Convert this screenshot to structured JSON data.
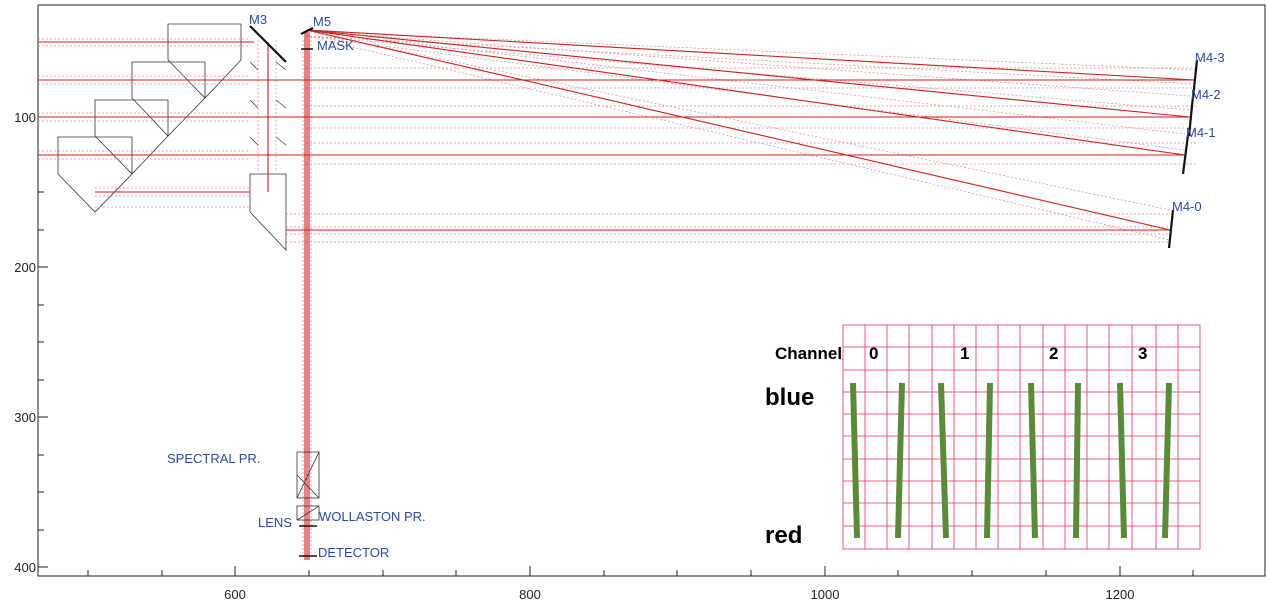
{
  "axes": {
    "x_ticks": [
      "600",
      "800",
      "1000",
      "1200"
    ],
    "y_ticks": [
      "100",
      "200",
      "300",
      "400"
    ]
  },
  "labels": {
    "m3": "M3",
    "m5": "M5",
    "mask": "MASK",
    "m4_3": "M4-3",
    "m4_2": "M4-2",
    "m4_1": "M4-1",
    "m4_0": "M4-0",
    "spectral_prism": "SPECTRAL PR.",
    "lens": "LENS",
    "wollaston_prism": "WOLLASTON PR.",
    "detector": "DETECTOR"
  },
  "inset": {
    "channel_title": "Channel",
    "channels": [
      "0",
      "1",
      "2",
      "3"
    ],
    "blue": "blue",
    "red": "red"
  },
  "colors": {
    "ray": "#cc1f1f",
    "ray_dotted": "#e08a8a",
    "label": "#2b4a9c",
    "grid": "#e0305a",
    "spectrum": "#5a8a3a"
  }
}
